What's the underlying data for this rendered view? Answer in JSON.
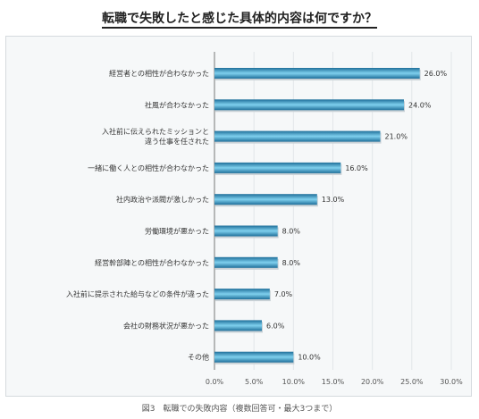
{
  "title": "転職で失敗したと感じた具体的内容は何ですか？",
  "caption": "図3　転職での失敗内容（複数回答可・最大3つまで）",
  "colors": {
    "bar_dark": "#1f6f9a",
    "bar_light": "#7fd0ee",
    "grid": "#e2e6e9",
    "axis": "#777777"
  },
  "chart_data": {
    "type": "bar",
    "orientation": "horizontal",
    "categories": [
      [
        "経営者との相性が合わなかった"
      ],
      [
        "社風が合わなかった"
      ],
      [
        "入社前に伝えられたミッションと",
        "違う仕事を任された"
      ],
      [
        "一緒に働く人との相性が合わなかった"
      ],
      [
        "社内政治や派閥が激しかった"
      ],
      [
        "労働環境が悪かった"
      ],
      [
        "経営幹部陣との相性が合わなかった"
      ],
      [
        "入社前に提示された給与などの条件が違った"
      ],
      [
        "会社の財務状況が悪かった"
      ],
      [
        "その他"
      ]
    ],
    "values": [
      26.0,
      24.0,
      21.0,
      16.0,
      13.0,
      8.0,
      8.0,
      7.0,
      6.0,
      10.0
    ],
    "value_labels": [
      "26.0%",
      "24.0%",
      "21.0%",
      "16.0%",
      "13.0%",
      "8.0%",
      "8.0%",
      "7.0%",
      "6.0%",
      "10.0%"
    ],
    "xlim": [
      0,
      30
    ],
    "x_ticks": [
      0,
      5,
      10,
      15,
      20,
      25,
      30
    ],
    "x_tick_labels": [
      "0.0%",
      "5.0%",
      "10.0%",
      "15.0%",
      "20.0%",
      "25.0%",
      "30.0%"
    ],
    "grid": true,
    "legend": "none"
  }
}
